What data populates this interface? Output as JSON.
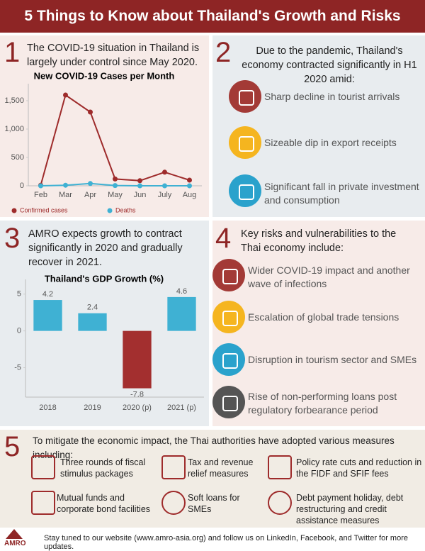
{
  "header": {
    "title": "5 Things to Know about Thailand's Growth and Risks"
  },
  "section1": {
    "number": "1",
    "text": "The COVID-19 situation in Thailand is largely under control since May 2020."
  },
  "section2": {
    "number": "2",
    "text": "Due to the pandemic, Thailand's economy contracted significantly in H1 2020 amid:",
    "items": [
      "Sharp decline in tourist arrivals",
      "Sizeable dip in export receipts",
      "Significant fall in private investment and consumption"
    ]
  },
  "section3": {
    "number": "3",
    "text": "AMRO expects growth to contract significantly in 2020 and gradually recover in 2021."
  },
  "section4": {
    "number": "4",
    "text": "Key risks and vulnerabilities to the Thai economy include:",
    "items": [
      "Wider COVID-19 impact and another wave of infections",
      "Escalation of global trade tensions",
      "Disruption in tourism sector and SMEs",
      "Rise of non-performing loans post regulatory forbearance period"
    ]
  },
  "section5": {
    "number": "5",
    "text": "To mitigate the economic impact, the Thai authorities have adopted various measures including:",
    "items": [
      "Three rounds of fiscal stimulus packages",
      "Tax and revenue relief measures",
      "Policy rate cuts and reduction in the FIDF and SFIF fees",
      "Mutual funds and corporate bond facilities",
      "Soft loans for SMEs",
      "Debt payment holiday, debt restructuring and credit assistance measures"
    ]
  },
  "footer": {
    "logo": "AMRO",
    "text": "Stay tuned to our website (www.amro-asia.org) and follow us on LinkedIn, Facebook, and Twitter for more updates."
  },
  "chart_data": [
    {
      "type": "line",
      "title": "New COVID-19 Cases per Month",
      "categories": [
        "Feb",
        "Mar",
        "Apr",
        "May",
        "Jun",
        "July",
        "Aug"
      ],
      "series": [
        {
          "name": "Confirmed cases",
          "color": "#9e2b2b",
          "values": [
            10,
            1600,
            1300,
            120,
            90,
            240,
            100
          ]
        },
        {
          "name": "Deaths",
          "color": "#3fb1d3",
          "values": [
            0,
            10,
            40,
            5,
            0,
            0,
            0
          ]
        }
      ],
      "ylim": [
        0,
        1800
      ],
      "yticks": [
        0,
        500,
        {
          "value": 1000,
          "label": "1,000"
        },
        {
          "value": 1500,
          "label": "1,500"
        }
      ],
      "grid": false
    },
    {
      "type": "bar",
      "title": "Thailand's GDP Growth (%)",
      "categories": [
        "2018",
        "2019",
        "2020 (p)",
        "2021 (p)"
      ],
      "values": [
        4.2,
        2.4,
        -7.8,
        4.6
      ],
      "colors": [
        "#3fb1d3",
        "#3fb1d3",
        "#a32f2f",
        "#3fb1d3"
      ],
      "ylim": [
        -9,
        7
      ],
      "yticks": [
        -5,
        0,
        5
      ],
      "grid": false
    }
  ]
}
